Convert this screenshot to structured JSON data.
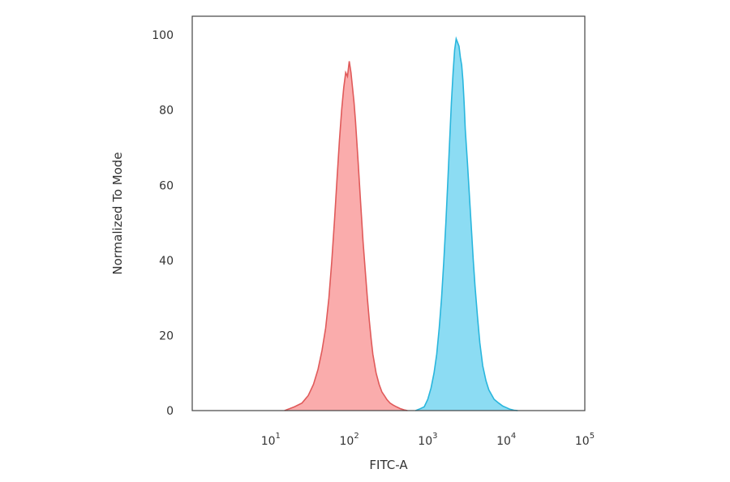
{
  "chart_data": {
    "type": "area",
    "title": "",
    "xlabel": "FITC-A",
    "ylabel": "Normalized To Mode",
    "x_scale": "log",
    "xlim": [
      1,
      100000
    ],
    "ylim": [
      0,
      105
    ],
    "grid": false,
    "x_ticks": [
      {
        "value": 10,
        "base": "10",
        "exp": "1"
      },
      {
        "value": 100,
        "base": "10",
        "exp": "2"
      },
      {
        "value": 1000,
        "base": "10",
        "exp": "3"
      },
      {
        "value": 10000,
        "base": "10",
        "exp": "4"
      },
      {
        "value": 100000,
        "base": "10",
        "exp": "5"
      }
    ],
    "y_ticks": [
      0,
      20,
      40,
      60,
      80,
      100
    ],
    "series": [
      {
        "color": "#e05a5a",
        "fill": "#f9a3a3",
        "x": [
          15,
          20,
          25,
          30,
          35,
          40,
          45,
          50,
          55,
          60,
          65,
          70,
          75,
          80,
          85,
          90,
          95,
          100,
          105,
          110,
          115,
          120,
          130,
          140,
          150,
          160,
          170,
          180,
          190,
          200,
          220,
          240,
          260,
          280,
          300,
          330,
          360,
          400,
          450,
          500,
          550
        ],
        "y": [
          0,
          1,
          2,
          4,
          7,
          11,
          16,
          22,
          30,
          40,
          51,
          62,
          72,
          80,
          86,
          90,
          89,
          93,
          90,
          86,
          82,
          77,
          66,
          55,
          45,
          37,
          30,
          24,
          19,
          15,
          10,
          7,
          5,
          4,
          3,
          2,
          1.5,
          1,
          0.5,
          0.2,
          0
        ]
      },
      {
        "color": "#29b6dd",
        "fill": "#7fd8f2",
        "x": [
          700,
          800,
          900,
          1000,
          1100,
          1200,
          1300,
          1400,
          1500,
          1600,
          1700,
          1800,
          1900,
          2000,
          2100,
          2200,
          2300,
          2400,
          2500,
          2600,
          2700,
          2800,
          2900,
          3000,
          3200,
          3400,
          3600,
          3800,
          4000,
          4300,
          4600,
          5000,
          5500,
          6000,
          7000,
          8000,
          9000,
          10000,
          11000,
          12500,
          14000
        ],
        "y": [
          0,
          0.5,
          1,
          3,
          6,
          10,
          15,
          22,
          30,
          40,
          50,
          61,
          72,
          82,
          90,
          96,
          99,
          98,
          97,
          94,
          92,
          88,
          82,
          75,
          66,
          57,
          48,
          40,
          33,
          25,
          18,
          12,
          8,
          5.5,
          3,
          2,
          1.2,
          0.8,
          0.4,
          0.1,
          0
        ]
      }
    ]
  }
}
